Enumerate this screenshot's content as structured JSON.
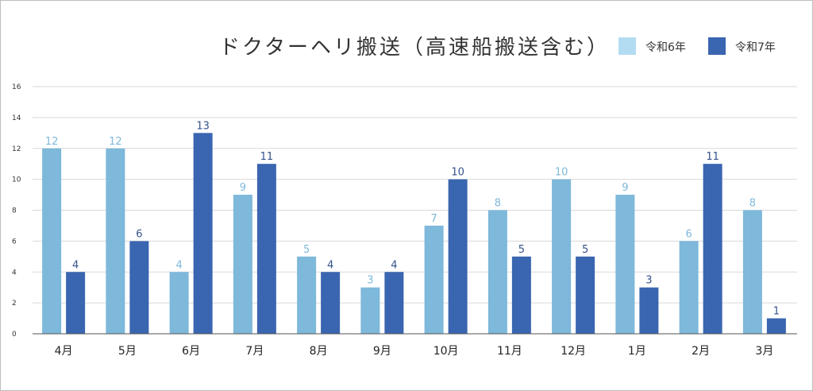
{
  "chart_data": {
    "type": "bar",
    "title": "ドクターヘリ搬送（高速船搬送含む）",
    "categories": [
      "4月",
      "5月",
      "6月",
      "7月",
      "8月",
      "9月",
      "10月",
      "11月",
      "12月",
      "1月",
      "2月",
      "3月"
    ],
    "series": [
      {
        "name": "令和6年",
        "color": "#7eb8da",
        "label_color": "#7eb8da",
        "values": [
          12,
          12,
          4,
          9,
          5,
          3,
          7,
          8,
          10,
          9,
          6,
          8
        ]
      },
      {
        "name": "令和7年",
        "color": "#3a65b0",
        "label_color": "#34528a",
        "values": [
          4,
          6,
          13,
          11,
          4,
          4,
          10,
          5,
          5,
          3,
          11,
          1
        ]
      }
    ],
    "ylim": [
      0,
      16
    ],
    "yticks": [
      0,
      2,
      4,
      6,
      8,
      10,
      12,
      14,
      16
    ],
    "grid": true,
    "legend_position": "top-right",
    "legend_swatch_colors": [
      "#b3dcf3",
      "#3a65b0"
    ]
  }
}
